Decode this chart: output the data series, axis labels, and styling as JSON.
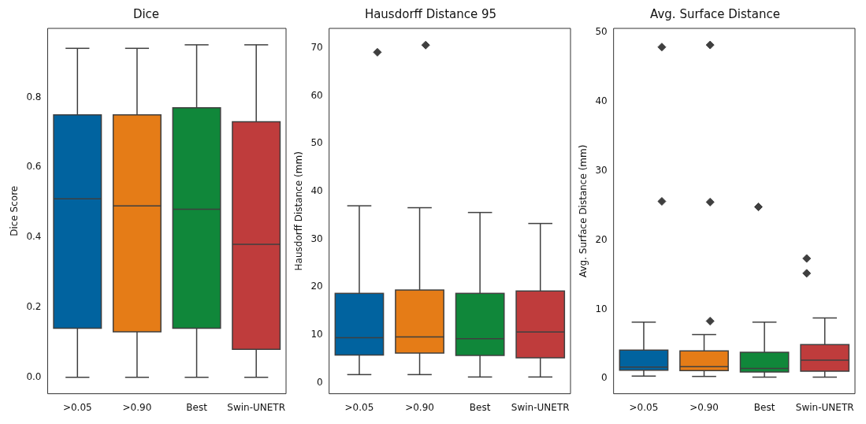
{
  "chart_data": [
    {
      "type": "box",
      "title": "Dice",
      "ylabel": "Dice Score",
      "categories": [
        ">0.05",
        ">0.90",
        "Best",
        "Swin-UNETR"
      ],
      "colors": [
        "#01639f",
        "#e57c17",
        "#10873a",
        "#bf3c3c"
      ],
      "ylim": [
        -0.047,
        0.997
      ],
      "yticks": [
        {
          "value": 0,
          "label": "0.0"
        },
        {
          "value": 0.2,
          "label": "0.2"
        },
        {
          "value": 0.4,
          "label": "0.4"
        },
        {
          "value": 0.6,
          "label": "0.6"
        },
        {
          "value": 0.8,
          "label": "0.8"
        }
      ],
      "boxes": [
        {
          "low": 0,
          "q1": 0.14,
          "median": 0.51,
          "q3": 0.75,
          "high": 0.94
        },
        {
          "low": 0,
          "q1": 0.13,
          "median": 0.49,
          "q3": 0.75,
          "high": 0.94
        },
        {
          "low": 0,
          "q1": 0.14,
          "median": 0.48,
          "q3": 0.77,
          "high": 0.95
        },
        {
          "low": 0,
          "q1": 0.08,
          "median": 0.38,
          "q3": 0.73,
          "high": 0.95
        }
      ]
    },
    {
      "type": "box",
      "title": "Hausdorff Distance 95",
      "ylabel": "Hausdorff Distance (mm)",
      "categories": [
        ">0.05",
        ">0.90",
        "Best",
        "Swin-UNETR"
      ],
      "colors": [
        "#01639f",
        "#e57c17",
        "#10873a",
        "#bf3c3c"
      ],
      "ylim": [
        -2.3,
        74.1
      ],
      "yticks": [
        0,
        10,
        20,
        30,
        40,
        50,
        60,
        70
      ],
      "marker": "diamond",
      "boxes": [
        {
          "low": 1.7,
          "q1": 5.8,
          "median": 9.4,
          "q3": 18.7,
          "high": 37.0,
          "outliers": [
            69.1
          ]
        },
        {
          "low": 1.7,
          "q1": 6.2,
          "median": 9.6,
          "q3": 19.4,
          "high": 36.6,
          "outliers": [
            70.6
          ]
        },
        {
          "low": 1.2,
          "q1": 5.7,
          "median": 9.2,
          "q3": 18.7,
          "high": 35.6
        },
        {
          "low": 1.2,
          "q1": 5.2,
          "median": 10.6,
          "q3": 19.2,
          "high": 33.3
        }
      ]
    },
    {
      "type": "box",
      "title": "Avg. Surface Distance",
      "ylabel": "Avg. Surface Distance (mm)",
      "categories": [
        ">0.05",
        ">0.90",
        "Best",
        "Swin-UNETR"
      ],
      "colors": [
        "#01639f",
        "#e57c17",
        "#10873a",
        "#bf3c3c"
      ],
      "ylim": [
        -2.2,
        50.6
      ],
      "yticks": [
        0,
        10,
        20,
        30,
        40,
        50
      ],
      "marker": "diamond",
      "boxes": [
        {
          "low": 0.35,
          "q1": 1.2,
          "median": 1.65,
          "q3": 4.1,
          "high": 8.15,
          "outliers": [
            47.9,
            25.6
          ]
        },
        {
          "low": 0.3,
          "q1": 1.15,
          "median": 1.7,
          "q3": 4.0,
          "high": 6.35,
          "outliers": [
            48.2,
            25.5,
            8.3
          ]
        },
        {
          "low": 0.2,
          "q1": 0.95,
          "median": 1.45,
          "q3": 3.8,
          "high": 8.15,
          "outliers": [
            24.8
          ]
        },
        {
          "low": 0.2,
          "q1": 1.05,
          "median": 2.65,
          "q3": 4.9,
          "high": 8.75,
          "outliers": [
            17.35,
            15.2
          ]
        }
      ]
    }
  ]
}
